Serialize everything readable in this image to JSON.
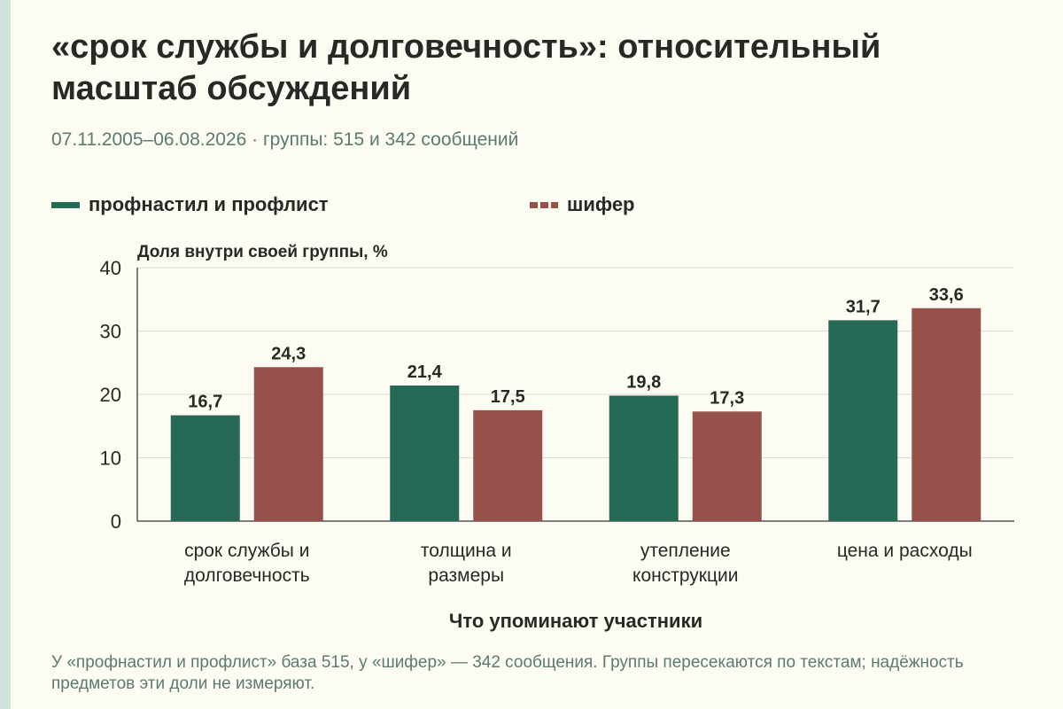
{
  "title": "«срок службы и долговечность»: относительный масштаб обсуждений",
  "subtitle": "07.11.2005–06.08.2026 · группы: 515 и 342 сообщений",
  "caption": "У «профнастил и профлист» база 515, у «шифер» — 342 сообщения. Группы пересекаются по текстам; надёжность предметов эти доли не измеряют.",
  "colors": {
    "series0": "#276957",
    "series1": "#96524a",
    "grid": "#d9ddd5",
    "text": "#252a26"
  },
  "chart_data": {
    "type": "bar",
    "ylabel": "Доля внутри своей группы, %",
    "xlabel": "Что упоминают участники",
    "ylim": [
      0,
      40
    ],
    "yticks": [
      0,
      10,
      20,
      30,
      40
    ],
    "grid": true,
    "legend_position": "top",
    "categories": [
      [
        "срок службы и",
        "долговечность"
      ],
      [
        "толщина и",
        "размеры"
      ],
      [
        "утепление",
        "конструкции"
      ],
      [
        "цена и расходы"
      ]
    ],
    "series": [
      {
        "name": "профнастил и профлист",
        "values": [
          16.7,
          21.4,
          19.8,
          31.7
        ],
        "labels": [
          "16,7",
          "21,4",
          "19,8",
          "31,7"
        ]
      },
      {
        "name": "шифер",
        "values": [
          24.3,
          17.5,
          17.3,
          33.6
        ],
        "labels": [
          "24,3",
          "17,5",
          "17,3",
          "33,6"
        ]
      }
    ]
  }
}
